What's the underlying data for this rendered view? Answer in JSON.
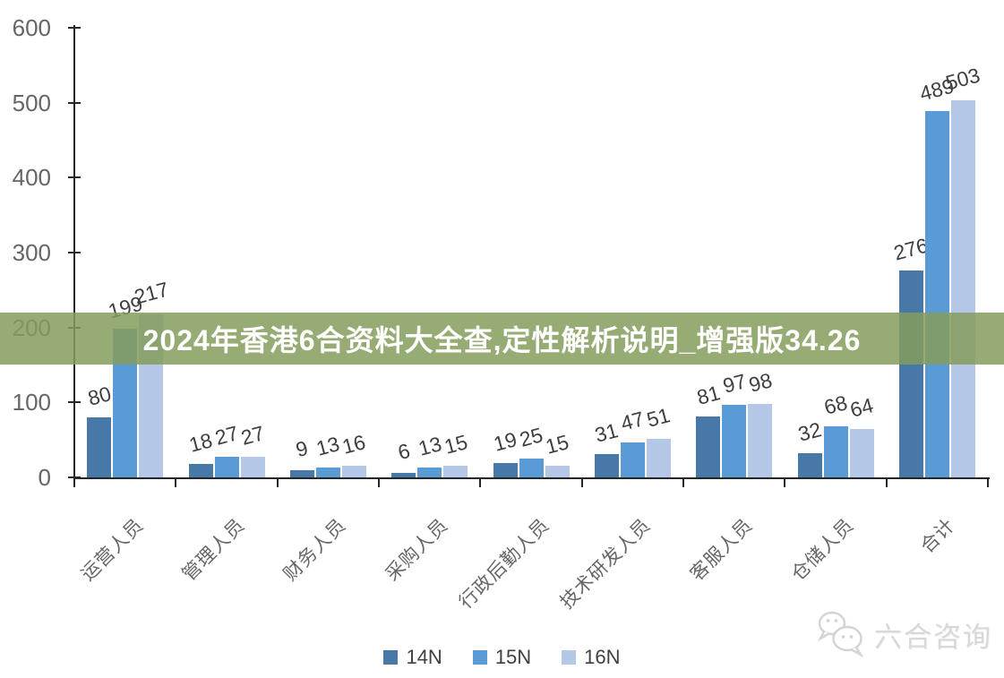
{
  "banner": {
    "text": "2024年香港6合资料大全查,定性解析说明_增强版34.26",
    "overlay_rgba": "rgba(133,156,92,0.85)",
    "text_color": "#ffffff"
  },
  "watermark": {
    "text": "六合咨询",
    "icon": "chat-bubbles-icon",
    "color": "#d8d8d8"
  },
  "chart_data": {
    "type": "bar",
    "title": "",
    "xlabel": "",
    "ylabel": "",
    "categories": [
      "运营人员",
      "管理人员",
      "财务人员",
      "采购人员",
      "行政后勤人员",
      "技术研发人员",
      "客服人员",
      "仓储人员",
      "合计"
    ],
    "series": [
      {
        "name": "14N",
        "color": "#4878a8",
        "values": [
          80,
          18,
          9,
          6,
          19,
          31,
          81,
          32,
          276
        ]
      },
      {
        "name": "15N",
        "color": "#5b9bd5",
        "values": [
          199,
          27,
          13,
          13,
          25,
          47,
          97,
          68,
          489
        ]
      },
      {
        "name": "16N",
        "color": "#b4c7e7",
        "values": [
          217,
          27,
          16,
          15,
          15,
          51,
          98,
          64,
          503
        ]
      }
    ],
    "ylim": [
      0,
      600
    ],
    "ytick_interval": 100,
    "ytick_labels": [
      "0",
      "100",
      "200",
      "300",
      "400",
      "500",
      "600"
    ],
    "grid": false,
    "data_labels": true,
    "axis_color": "#262626",
    "tick_label_color": "#666666",
    "data_label_color": "#3f3f3f",
    "legend_position": "bottom"
  }
}
